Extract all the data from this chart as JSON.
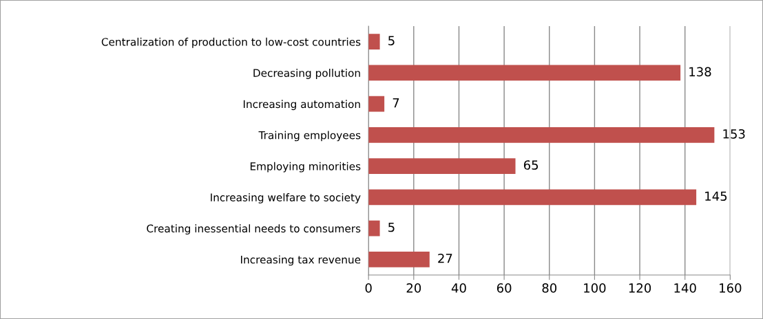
{
  "chart_data": {
    "type": "bar",
    "orientation": "horizontal",
    "categories": [
      "Centralization of production to low-cost countries",
      "Decreasing pollution",
      "Increasing automation",
      "Training employees",
      "Employing minorities",
      "Increasing welfare to society",
      "Creating inessential needs to consumers",
      "Increasing tax revenue"
    ],
    "values": [
      5,
      138,
      7,
      153,
      65,
      145,
      5,
      27
    ],
    "color": "#c0504d",
    "xlim": [
      0,
      160
    ],
    "xticks": [
      0,
      20,
      40,
      60,
      80,
      100,
      120,
      140,
      160
    ],
    "grid": "x",
    "data_labels": true,
    "legend": false
  }
}
